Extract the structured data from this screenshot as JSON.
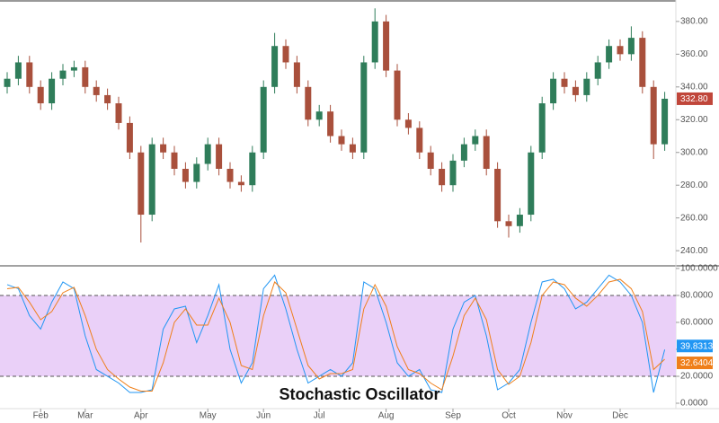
{
  "chart_data": [
    {
      "type": "candlestick",
      "categories": [
        null,
        null,
        null,
        "Feb",
        null,
        null,
        null,
        "Mar",
        null,
        null,
        null,
        null,
        "Apr",
        null,
        null,
        null,
        null,
        null,
        "May",
        null,
        null,
        null,
        null,
        "Jun",
        null,
        null,
        null,
        null,
        "Jul",
        null,
        null,
        null,
        null,
        null,
        "Aug",
        null,
        null,
        null,
        null,
        null,
        "Sep",
        null,
        null,
        null,
        null,
        "Oct",
        null,
        null,
        null,
        null,
        "Nov",
        null,
        null,
        null,
        null,
        "Dec",
        null,
        null,
        null,
        null
      ],
      "open": [
        340,
        345,
        355,
        340,
        330,
        345,
        350,
        352,
        340,
        335,
        330,
        318,
        300,
        262,
        305,
        300,
        290,
        282,
        293,
        305,
        290,
        282,
        280,
        300,
        340,
        365,
        355,
        340,
        320,
        325,
        310,
        305,
        300,
        355,
        380,
        350,
        320,
        315,
        300,
        290,
        280,
        295,
        305,
        310,
        290,
        258,
        255,
        262,
        300,
        330,
        345,
        340,
        335,
        345,
        355,
        365,
        360,
        370,
        340,
        305
      ],
      "high": [
        349,
        359,
        359,
        344,
        349,
        354,
        356,
        356,
        344,
        339,
        334,
        322,
        304,
        309,
        309,
        304,
        294,
        297,
        309,
        309,
        294,
        286,
        304,
        344,
        373,
        369,
        359,
        344,
        329,
        329,
        314,
        309,
        359,
        388,
        384,
        354,
        324,
        319,
        304,
        294,
        299,
        309,
        314,
        314,
        294,
        262,
        266,
        304,
        334,
        349,
        349,
        344,
        349,
        359,
        369,
        369,
        377,
        374,
        344,
        337
      ],
      "low": [
        336,
        341,
        336,
        326,
        326,
        341,
        346,
        336,
        331,
        326,
        314,
        296,
        245,
        258,
        296,
        286,
        278,
        278,
        289,
        286,
        278,
        276,
        276,
        296,
        336,
        351,
        336,
        316,
        316,
        306,
        301,
        296,
        296,
        351,
        346,
        316,
        311,
        296,
        286,
        276,
        276,
        291,
        301,
        286,
        254,
        248,
        251,
        258,
        296,
        326,
        336,
        331,
        331,
        341,
        351,
        356,
        356,
        336,
        296,
        301
      ],
      "close": [
        345,
        355,
        340,
        330,
        345,
        350,
        352,
        340,
        335,
        330,
        318,
        300,
        262,
        305,
        300,
        290,
        282,
        293,
        305,
        290,
        282,
        280,
        300,
        340,
        365,
        355,
        340,
        320,
        325,
        310,
        305,
        300,
        355,
        380,
        350,
        320,
        315,
        300,
        290,
        280,
        295,
        305,
        310,
        290,
        258,
        255,
        262,
        300,
        330,
        345,
        340,
        335,
        345,
        355,
        365,
        360,
        370,
        340,
        305,
        332.8
      ],
      "up_color": "#2f7d5a",
      "down_color": "#a9503c",
      "ylim": [
        231.3,
        392
      ],
      "yticks": [
        {
          "value": 240,
          "label": "240.00"
        },
        {
          "value": 260,
          "label": "260.00"
        },
        {
          "value": 280,
          "label": "280.00"
        },
        {
          "value": 300,
          "label": "300.00"
        },
        {
          "value": 320,
          "label": "320.00"
        },
        {
          "value": 340,
          "label": "340.00"
        },
        {
          "value": 360,
          "label": "360.00"
        },
        {
          "value": 380,
          "label": "380.00"
        }
      ],
      "price_tag": {
        "value": 332.8,
        "label": "332.80",
        "color": "#c0463a"
      }
    },
    {
      "type": "line",
      "title": "Stochastic Oscillator",
      "series": [
        {
          "color": "#2196f3",
          "values": [
            88,
            85,
            65,
            55,
            75,
            90,
            85,
            50,
            25,
            20,
            15,
            8,
            8,
            10,
            55,
            70,
            72,
            45,
            65,
            88,
            40,
            15,
            30,
            85,
            95,
            70,
            40,
            15,
            20,
            25,
            20,
            30,
            90,
            85,
            60,
            30,
            20,
            25,
            10,
            8,
            55,
            75,
            80,
            50,
            10,
            15,
            25,
            60,
            90,
            92,
            85,
            70,
            75,
            85,
            95,
            90,
            80,
            60,
            8,
            39.8313
          ]
        },
        {
          "color": "#ef7f1a",
          "values": [
            85,
            86,
            75,
            62,
            68,
            82,
            86,
            65,
            40,
            25,
            18,
            12,
            9,
            9,
            30,
            60,
            70,
            58,
            58,
            78,
            60,
            28,
            25,
            65,
            90,
            82,
            55,
            28,
            18,
            22,
            22,
            25,
            70,
            88,
            72,
            42,
            25,
            22,
            15,
            10,
            35,
            65,
            78,
            62,
            25,
            14,
            20,
            45,
            80,
            90,
            88,
            78,
            72,
            80,
            90,
            92,
            85,
            68,
            25,
            32.6404
          ]
        }
      ],
      "band": [
        20,
        80
      ],
      "band_color": "#ead0f8",
      "ylim": [
        -4,
        101.3
      ],
      "yticks": [
        {
          "value": 0,
          "label": "0.0000"
        },
        {
          "value": 20,
          "label": "20.0000"
        },
        {
          "value": 40,
          "label": "40.0000"
        },
        {
          "value": 60,
          "label": "60.0000"
        },
        {
          "value": 80,
          "label": "80.0000"
        },
        {
          "value": 100,
          "label": "100.0000"
        }
      ]
    }
  ]
}
